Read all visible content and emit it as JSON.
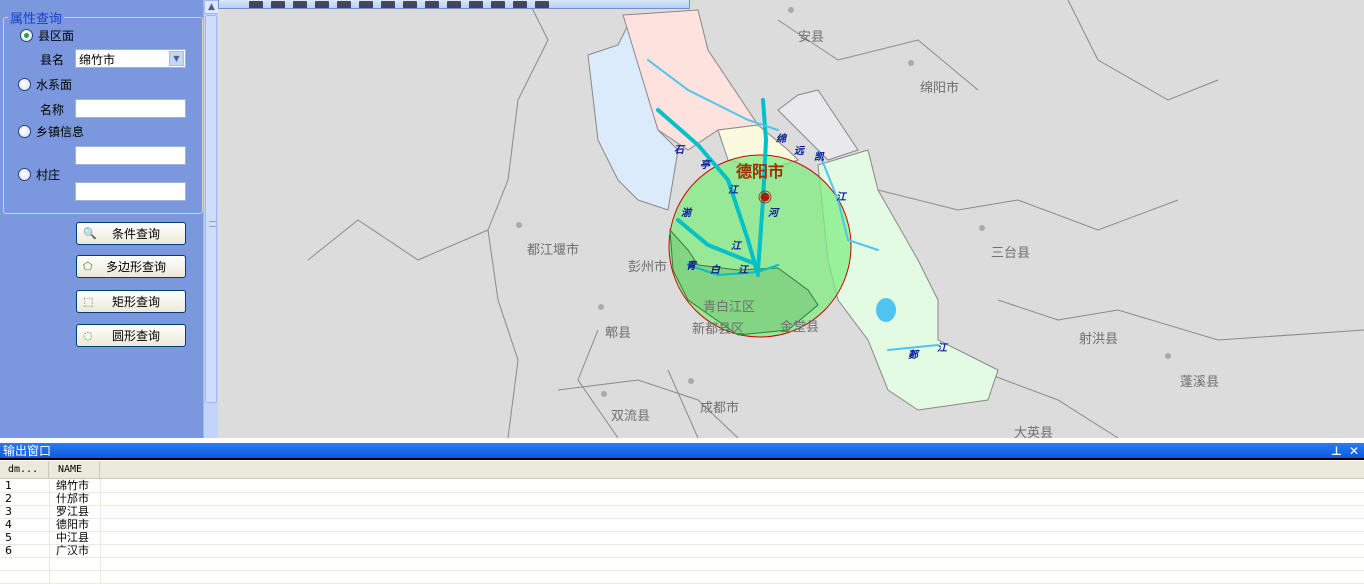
{
  "panel": {
    "group_title": "属性查询",
    "options": [
      {
        "label": "县区面",
        "selected": true,
        "field_label": "县名",
        "field_value": "绵竹市",
        "field_type": "select"
      },
      {
        "label": "水系面",
        "selected": false,
        "field_label": "名称",
        "field_value": ""
      },
      {
        "label": "乡镇信息",
        "selected": false,
        "field_label": "",
        "field_value": ""
      },
      {
        "label": "村庄",
        "selected": false,
        "field_label": "",
        "field_value": ""
      }
    ],
    "buttons": [
      {
        "label": "条件查询",
        "icon": "magnifier-page-icon"
      },
      {
        "label": "多边形查询",
        "icon": "polygon-select-icon"
      },
      {
        "label": "矩形查询",
        "icon": "rectangle-select-icon"
      },
      {
        "label": "圆形查询",
        "icon": "circle-select-icon"
      }
    ]
  },
  "map": {
    "selected_city": "德阳市",
    "labels": [
      "安县",
      "绵阳市",
      "都江堰市",
      "彭州市",
      "三台县",
      "青白江区",
      "郫县",
      "新都县区",
      "金堂县",
      "射洪县",
      "蓬溪县",
      "双流县",
      "成都市",
      "大英县"
    ],
    "rivers": [
      "石",
      "亭",
      "江",
      "绵",
      "远",
      "河",
      "凯",
      "江",
      "湔",
      "江",
      "江",
      "青",
      "白",
      "江",
      "郪",
      "江"
    ],
    "colors": {
      "background": "#dcdcdc",
      "query_circle": "#80ee80",
      "circle_border": "#cc0000",
      "river": "#00c0c8",
      "selected_label": "#a03000"
    }
  },
  "output": {
    "title": "输出窗口",
    "pin": "⊥",
    "close": "✕",
    "columns": [
      "dm...",
      "NAME"
    ],
    "rows": [
      [
        "1",
        "绵竹市"
      ],
      [
        "2",
        "什邡市"
      ],
      [
        "3",
        "罗江县"
      ],
      [
        "4",
        "德阳市"
      ],
      [
        "5",
        "中江县"
      ],
      [
        "6",
        "广汉市"
      ]
    ]
  }
}
